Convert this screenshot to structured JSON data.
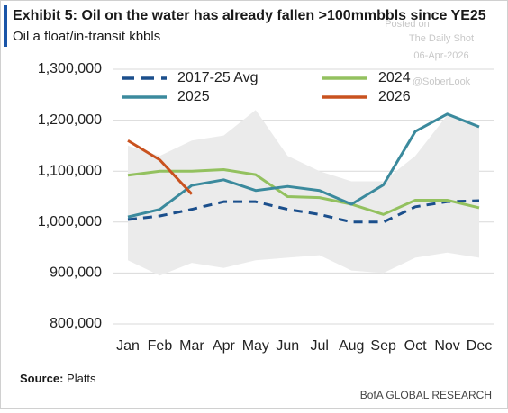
{
  "chart_data": {
    "type": "line",
    "title": "Exhibit 5: Oil on the water has already fallen >100mmbbls since YE25",
    "subtitle": "Oil a float/in-transit kbbls",
    "watermark": [
      "Posted on",
      "The Daily Shot",
      "06-Apr-2026",
      "@SoberLook"
    ],
    "source_label": "Source:",
    "source": "Platts",
    "footer": "BofA GLOBAL RESEARCH",
    "categories": [
      "Jan",
      "Feb",
      "Mar",
      "Apr",
      "May",
      "Jun",
      "Jul",
      "Aug",
      "Sep",
      "Oct",
      "Nov",
      "Dec"
    ],
    "ylim": [
      800000,
      1300000
    ],
    "yticks": [
      {
        "value": 800000,
        "label": "800,000"
      },
      {
        "value": 900000,
        "label": "900,000"
      },
      {
        "value": 1000000,
        "label": "1,000,000"
      },
      {
        "value": 1100000,
        "label": "1,100,000"
      },
      {
        "value": 1200000,
        "label": "1,200,000"
      },
      {
        "value": 1300000,
        "label": "1,300,000"
      }
    ],
    "grid": true,
    "band": {
      "color": "#ebebeb",
      "upper": [
        1150000,
        1130000,
        1160000,
        1170000,
        1220000,
        1130000,
        1100000,
        1080000,
        1080000,
        1130000,
        1210000,
        1190000
      ],
      "lower": [
        925000,
        895000,
        920000,
        910000,
        925000,
        930000,
        935000,
        905000,
        900000,
        930000,
        940000,
        930000
      ]
    },
    "series": [
      {
        "name": "2017-25 Avg",
        "color": "#1b4f8c",
        "dashed": true,
        "values": [
          1005000,
          1012000,
          1025000,
          1040000,
          1040000,
          1025000,
          1015000,
          1000000,
          1000000,
          1030000,
          1040000,
          1042000
        ]
      },
      {
        "name": "2024",
        "color": "#93c15f",
        "values": [
          1092000,
          1100000,
          1100000,
          1103000,
          1093000,
          1050000,
          1048000,
          1035000,
          1015000,
          1043000,
          1043000,
          1028000
        ]
      },
      {
        "name": "2025",
        "color": "#3b8a9d",
        "values": [
          1010000,
          1025000,
          1072000,
          1083000,
          1062000,
          1070000,
          1062000,
          1035000,
          1073000,
          1178000,
          1212000,
          1187000
        ]
      },
      {
        "name": "2026",
        "color": "#c9521f",
        "values": [
          1160000,
          1122000,
          1055000,
          null,
          null,
          null,
          null,
          null,
          null,
          null,
          null,
          null
        ]
      }
    ]
  }
}
